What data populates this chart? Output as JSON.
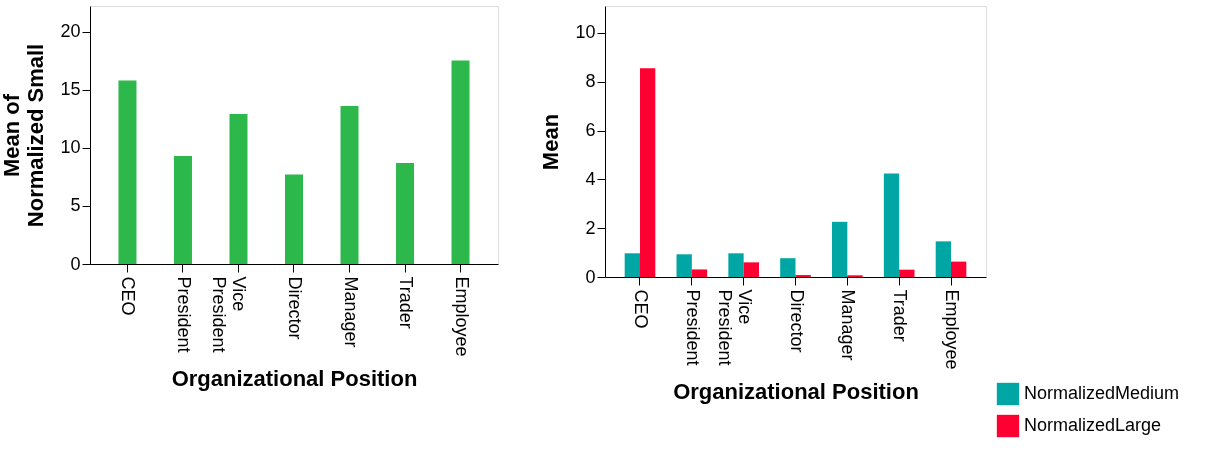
{
  "chart_data": [
    {
      "type": "bar",
      "xlabel": "Organizational Position",
      "ylabel": "Mean of\nNormalized Small",
      "categories": [
        "CEO",
        "President",
        "Vice President",
        "Director",
        "Manager",
        "Trader",
        "Employee"
      ],
      "values": [
        15.8,
        9.3,
        12.9,
        7.7,
        13.6,
        8.7,
        17.5
      ],
      "color": "#2db84b",
      "ylim": [
        0,
        22.2
      ],
      "yticks": [
        0,
        5,
        10,
        15,
        20
      ],
      "grid": false
    },
    {
      "type": "bar",
      "xlabel": "Organizational Position",
      "ylabel": "Mean",
      "categories": [
        "CEO",
        "President",
        "Vice President",
        "Director",
        "Manager",
        "Trader",
        "Employee"
      ],
      "series": [
        {
          "name": "NormalizedMedium",
          "color": "#00a6a4",
          "values": [
            0.97,
            0.93,
            0.97,
            0.77,
            2.26,
            4.24,
            1.46
          ]
        },
        {
          "name": "NormalizedLarge",
          "color": "#ff0033",
          "values": [
            8.55,
            0.31,
            0.6,
            0.08,
            0.07,
            0.3,
            0.63
          ]
        }
      ],
      "ylim": [
        0,
        11.1
      ],
      "yticks": [
        0,
        2,
        4,
        6,
        8,
        10
      ],
      "grid": false,
      "legend": "bottom right"
    }
  ]
}
